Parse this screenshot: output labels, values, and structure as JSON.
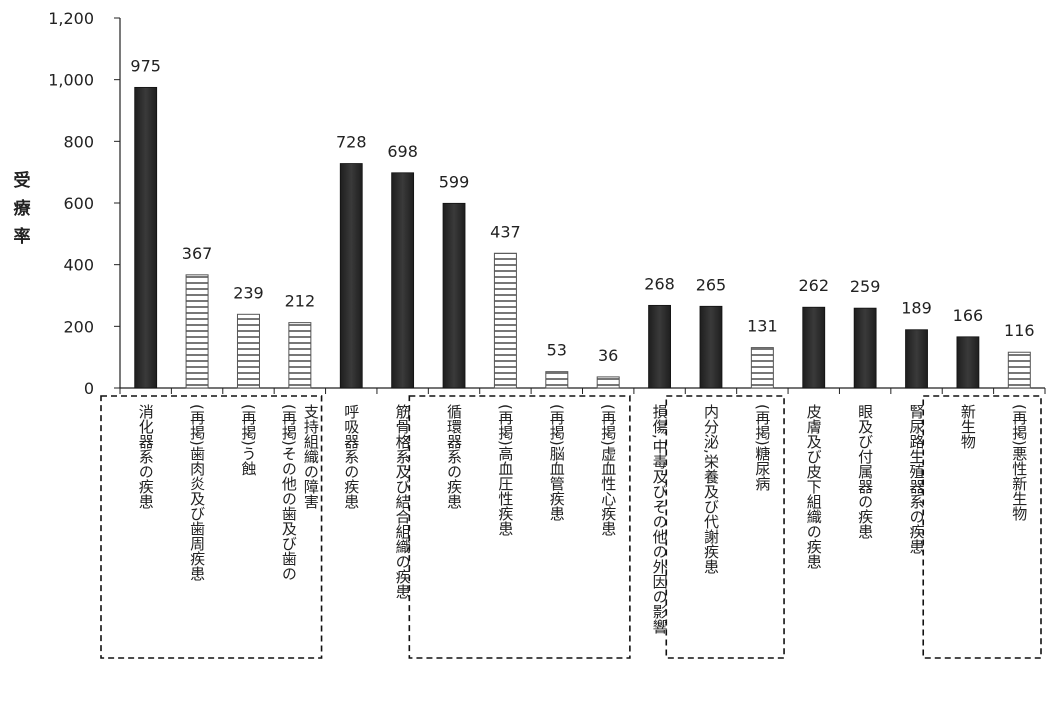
{
  "chart_data": {
    "type": "bar",
    "ylabel": "受療率",
    "ylim": [
      0,
      1200
    ],
    "yticks": [
      "0",
      "200",
      "400",
      "600",
      "800",
      "1,000",
      "1,200"
    ],
    "categories": [
      [
        "消化器系の疾患"
      ],
      [
        "(再掲)歯肉炎及び歯周疾患"
      ],
      [
        "(再掲)う蝕"
      ],
      [
        "(再掲)その他の歯及び歯の",
        "支持組織の障害"
      ],
      [
        "呼吸器系の疾患"
      ],
      [
        "筋骨格系及び結合組織の疾患"
      ],
      [
        "循環器系の疾患"
      ],
      [
        "(再掲)高血圧性疾患"
      ],
      [
        "(再掲)脳血管疾患"
      ],
      [
        "(再掲)虚血性心疾患"
      ],
      [
        "損傷,中毒及びその他の外因の影響"
      ],
      [
        "内分泌,栄養及び代謝疾患"
      ],
      [
        "(再掲)糖尿病"
      ],
      [
        "皮膚及び皮下組織の疾患"
      ],
      [
        "眼及び付属器の疾患"
      ],
      [
        "腎尿路生殖器系の疾患"
      ],
      [
        "新生物"
      ],
      [
        "(再掲)悪性新生物"
      ]
    ],
    "values": [
      975,
      367,
      239,
      212,
      728,
      698,
      599,
      437,
      53,
      36,
      268,
      265,
      131,
      262,
      259,
      189,
      166,
      116
    ],
    "value_labels": [
      "975",
      "367",
      "239",
      "212",
      "728",
      "698",
      "599",
      "437",
      "53",
      "36",
      "268",
      "265",
      "131",
      "262",
      "259",
      "189",
      "166",
      "116"
    ],
    "bar_style": [
      "solid",
      "striped",
      "striped",
      "striped",
      "solid",
      "solid",
      "solid",
      "striped",
      "striped",
      "striped",
      "solid",
      "solid",
      "striped",
      "solid",
      "solid",
      "solid",
      "solid",
      "striped"
    ],
    "groups": [
      {
        "from": 0,
        "to": 3
      },
      {
        "from": 6,
        "to": 9
      },
      {
        "from": 11,
        "to": 12
      },
      {
        "from": 16,
        "to": 17
      }
    ],
    "colors": {
      "solid": "#3a3a3a",
      "stripe": "#777777",
      "axis": "#222222"
    }
  }
}
